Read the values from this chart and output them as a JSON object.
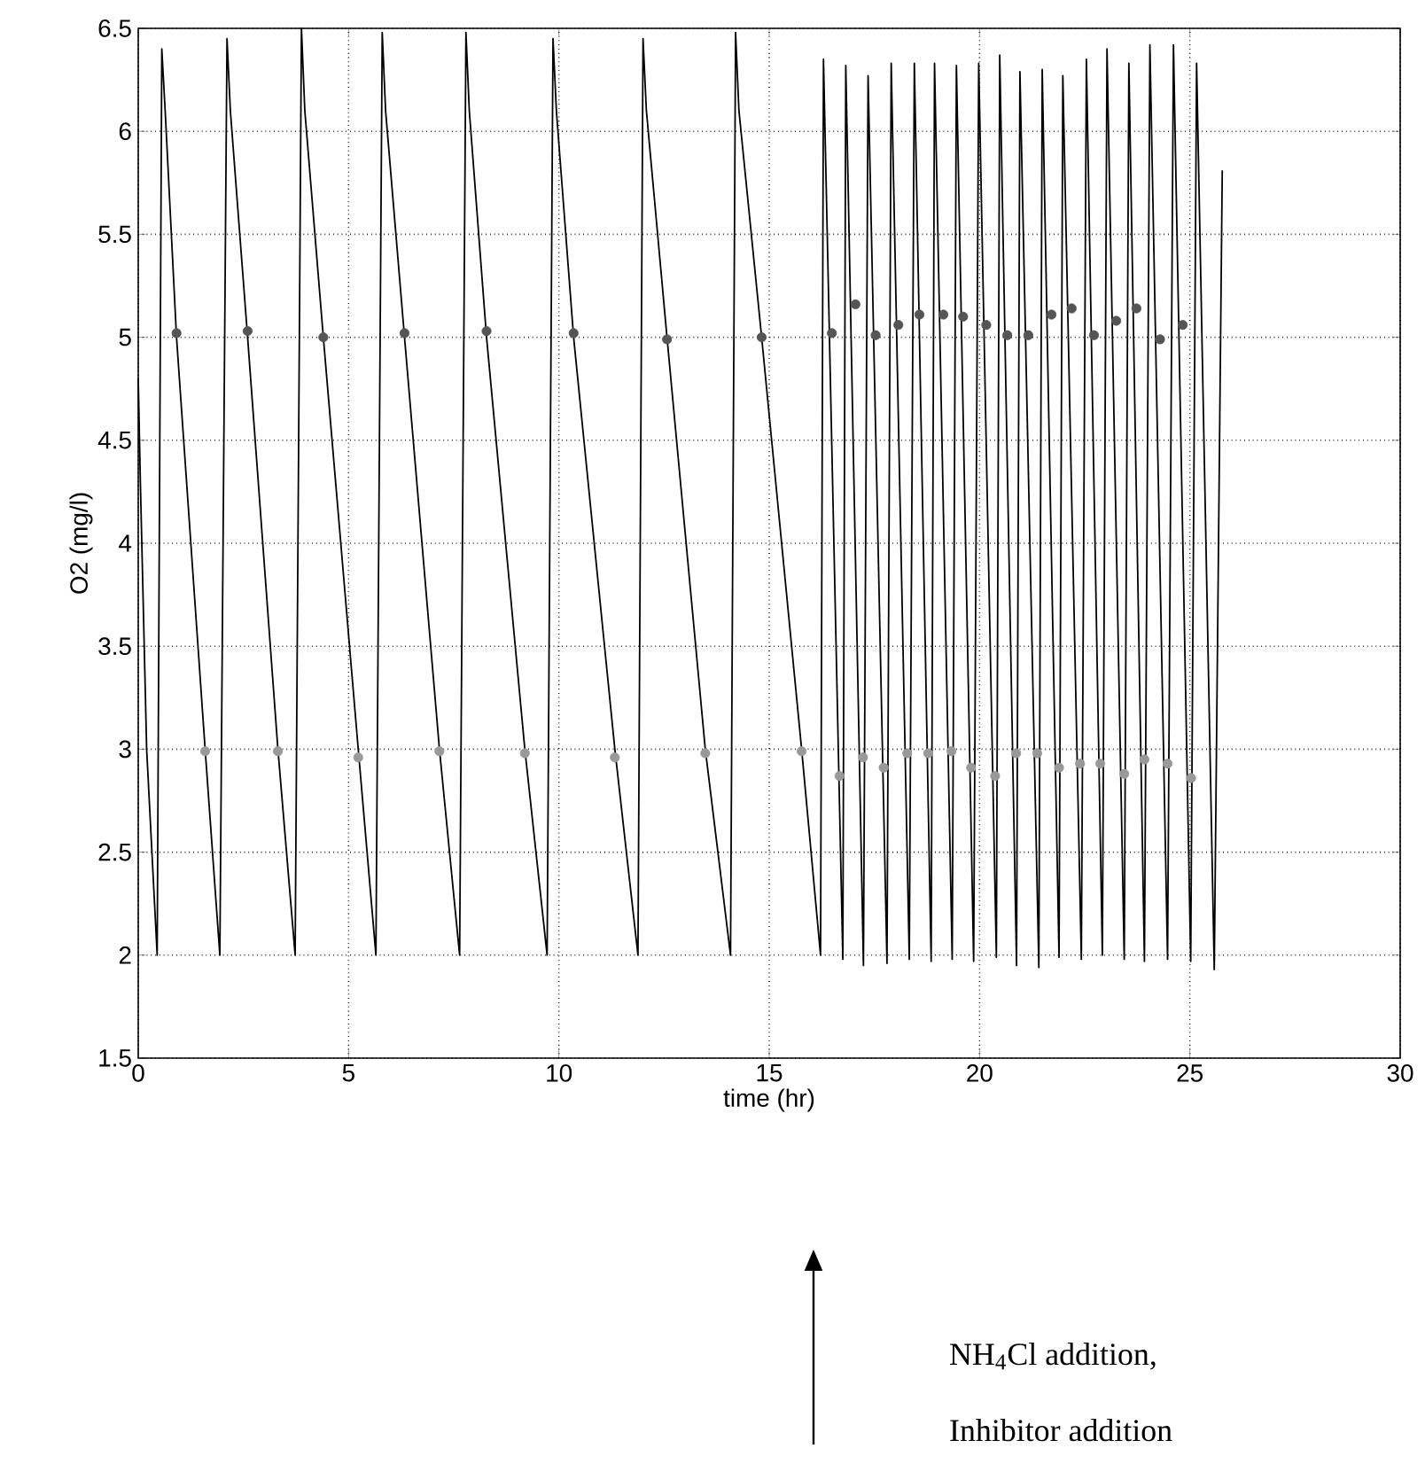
{
  "chart_data": {
    "type": "line",
    "xlabel": "time (hr)",
    "ylabel": "O2 (mg/l)",
    "xlim": [
      0,
      30
    ],
    "ylim": [
      1.5,
      6.5
    ],
    "xticks": [
      0,
      5,
      10,
      15,
      20,
      25,
      30
    ],
    "yticks": [
      1.5,
      2,
      2.5,
      3,
      3.5,
      4,
      4.5,
      5,
      5.5,
      6,
      6.5
    ],
    "grid": true,
    "series": [
      {
        "color": "#000000",
        "marker": "none",
        "line_style": "solid",
        "x": [
          0,
          0.05,
          0.2,
          0.45,
          0.56,
          0.64,
          0.91,
          1.59,
          1.94,
          2.11,
          2.19,
          2.6,
          3.32,
          3.73,
          3.88,
          3.96,
          4.4,
          5.23,
          5.65,
          5.8,
          5.88,
          6.33,
          7.16,
          7.64,
          7.79,
          7.87,
          8.28,
          9.19,
          9.72,
          9.86,
          9.94,
          10.35,
          11.33,
          11.88,
          12.0,
          12.08,
          12.57,
          13.48,
          14.08,
          14.2,
          14.28,
          14.82,
          15.77,
          16.22,
          16.29,
          16.75,
          16.82,
          17.24,
          17.35,
          17.8,
          17.9,
          18.33,
          18.45,
          18.85,
          18.93,
          19.35,
          19.45,
          19.86,
          19.98,
          20.4,
          20.48,
          20.88,
          20.96,
          21.41,
          21.49,
          21.89,
          21.98,
          22.42,
          22.54,
          22.92,
          23.03,
          23.44,
          23.55,
          23.92,
          24.05,
          24.47,
          24.61,
          25.02,
          25.16,
          25.58,
          25.77
        ],
        "values": [
          4.8,
          4.3,
          3.0,
          2.0,
          6.4,
          6.1,
          5.0,
          3.0,
          2.0,
          6.45,
          6.1,
          5.0,
          3.0,
          2.0,
          6.5,
          6.1,
          5.0,
          3.0,
          2.0,
          6.48,
          6.1,
          5.0,
          3.0,
          2.0,
          6.48,
          6.1,
          5.0,
          3.0,
          2.0,
          6.45,
          6.1,
          5.0,
          3.0,
          2.0,
          6.45,
          6.1,
          5.0,
          3.0,
          2.0,
          6.48,
          6.1,
          5.0,
          3.0,
          2.0,
          6.35,
          1.98,
          6.32,
          1.95,
          6.27,
          1.96,
          6.33,
          1.98,
          6.33,
          1.97,
          6.33,
          1.98,
          6.32,
          1.97,
          6.33,
          1.99,
          6.37,
          1.95,
          6.29,
          1.94,
          6.3,
          1.99,
          6.27,
          1.98,
          6.35,
          2.0,
          6.4,
          1.98,
          6.33,
          1.97,
          6.42,
          1.98,
          6.42,
          1.97,
          6.33,
          1.93,
          5.81
        ]
      },
      {
        "type": "scatter",
        "color": "#555555",
        "marker": "circle",
        "x": [
          0.91,
          2.6,
          4.4,
          6.33,
          8.28,
          10.35,
          12.57,
          14.82,
          16.49,
          17.05,
          17.53,
          18.07,
          18.57,
          19.14,
          19.61,
          20.16,
          20.66,
          21.16,
          21.71,
          22.19,
          22.72,
          23.25,
          23.73,
          24.29,
          24.83
        ],
        "values": [
          5.02,
          5.03,
          5.0,
          5.02,
          5.03,
          5.02,
          4.99,
          5.0,
          5.02,
          5.16,
          5.01,
          5.06,
          5.11,
          5.11,
          5.1,
          5.06,
          5.01,
          5.01,
          5.11,
          5.14,
          5.01,
          5.08,
          5.14,
          4.99,
          5.06
        ]
      },
      {
        "type": "scatter",
        "color": "#999999",
        "marker": "circle",
        "x": [
          1.59,
          3.32,
          5.23,
          7.16,
          9.19,
          11.33,
          13.48,
          15.77,
          16.67,
          17.23,
          17.72,
          18.28,
          18.78,
          19.33,
          19.8,
          20.37,
          20.87,
          21.37,
          21.89,
          22.39,
          22.87,
          23.44,
          23.92,
          24.47,
          25.03
        ],
        "values": [
          2.99,
          2.99,
          2.96,
          2.99,
          2.98,
          2.96,
          2.98,
          2.99,
          2.87,
          2.96,
          2.91,
          2.98,
          2.98,
          2.99,
          2.91,
          2.87,
          2.98,
          2.98,
          2.91,
          2.93,
          2.93,
          2.88,
          2.95,
          2.93,
          2.86
        ]
      }
    ],
    "annotations": [
      "NH$_{4}$Cl addition,",
      "Inhibitor addition"
    ]
  }
}
